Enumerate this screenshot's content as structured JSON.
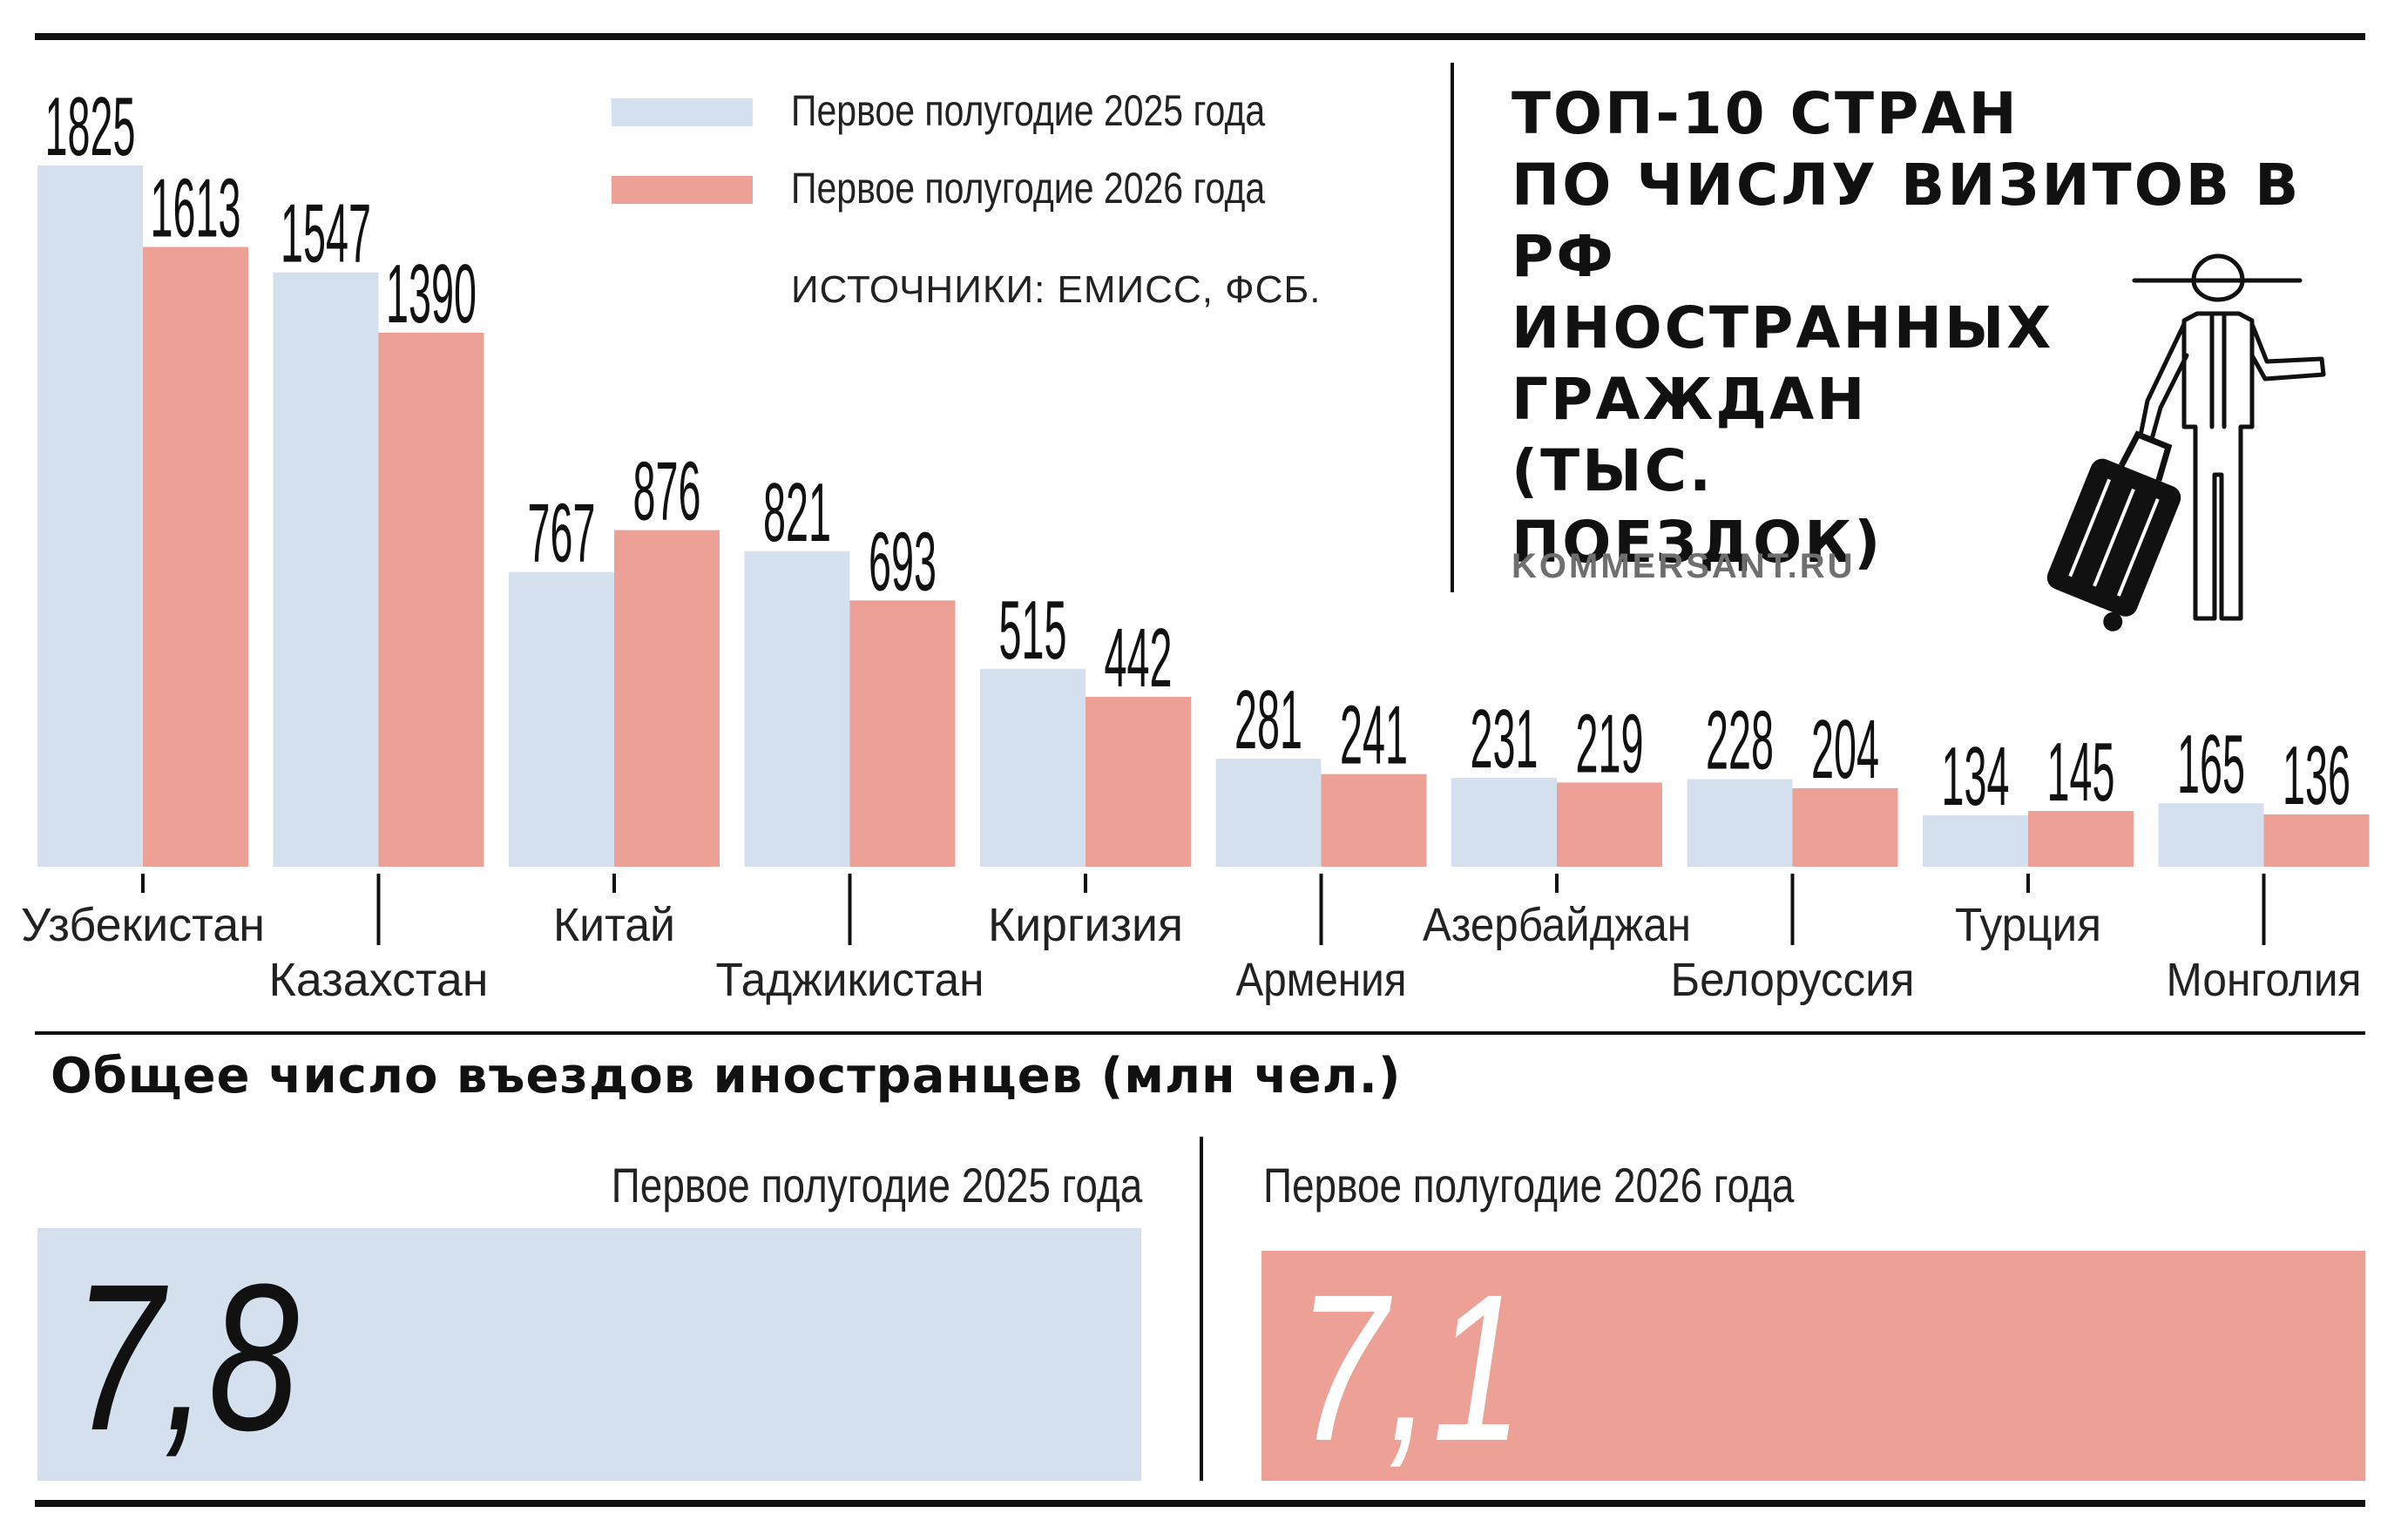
{
  "colors": {
    "y2025": "#d5e0ee",
    "y2026": "#eda095",
    "ink": "#111111",
    "muted": "#6f6f6f"
  },
  "legend": {
    "items": [
      {
        "label": "Первое полугодие 2025 года",
        "color": "#d5e0ee"
      },
      {
        "label": "Первое полугодие 2026 года",
        "color": "#eda095"
      }
    ],
    "source": "ИСТОЧНИКИ: ЕМИСС, ФСБ."
  },
  "title_lines": [
    "ТОП-10 СТРАН",
    "ПО ЧИСЛУ ВИЗИТОВ В РФ",
    "ИНОСТРАННЫХ",
    "ГРАЖДАН",
    "(ТЫС.",
    "ПОЕЗДОК)"
  ],
  "site": "KOMMERSANT.RU",
  "illustration_icon": "traveler-with-suitcase-icon",
  "chart_data": {
    "type": "bar",
    "unit": "тыс. поездок",
    "categories": [
      "Узбекистан",
      "Казахстан",
      "Китай",
      "Таджикистан",
      "Киргизия",
      "Армения",
      "Азербайджан",
      "Белоруссия",
      "Турция",
      "Монголия"
    ],
    "series": [
      {
        "name": "Первое полугодие 2025 года",
        "values": [
          1825,
          1547,
          767,
          821,
          515,
          281,
          231,
          228,
          134,
          165
        ]
      },
      {
        "name": "Первое полугодие 2026 года",
        "values": [
          1613,
          1390,
          876,
          693,
          442,
          241,
          219,
          204,
          145,
          136
        ]
      }
    ],
    "ylim": [
      0,
      1825
    ],
    "grid": false,
    "legend_position": "top-center"
  },
  "totals": {
    "title": "Общее число въездов иностранцев (млн чел.)",
    "items": [
      {
        "label": "Первое полугодие 2025 года",
        "value": "7,8",
        "number": 7.8
      },
      {
        "label": "Первое полугодие 2026 года",
        "value": "7,1",
        "number": 7.1
      }
    ]
  }
}
